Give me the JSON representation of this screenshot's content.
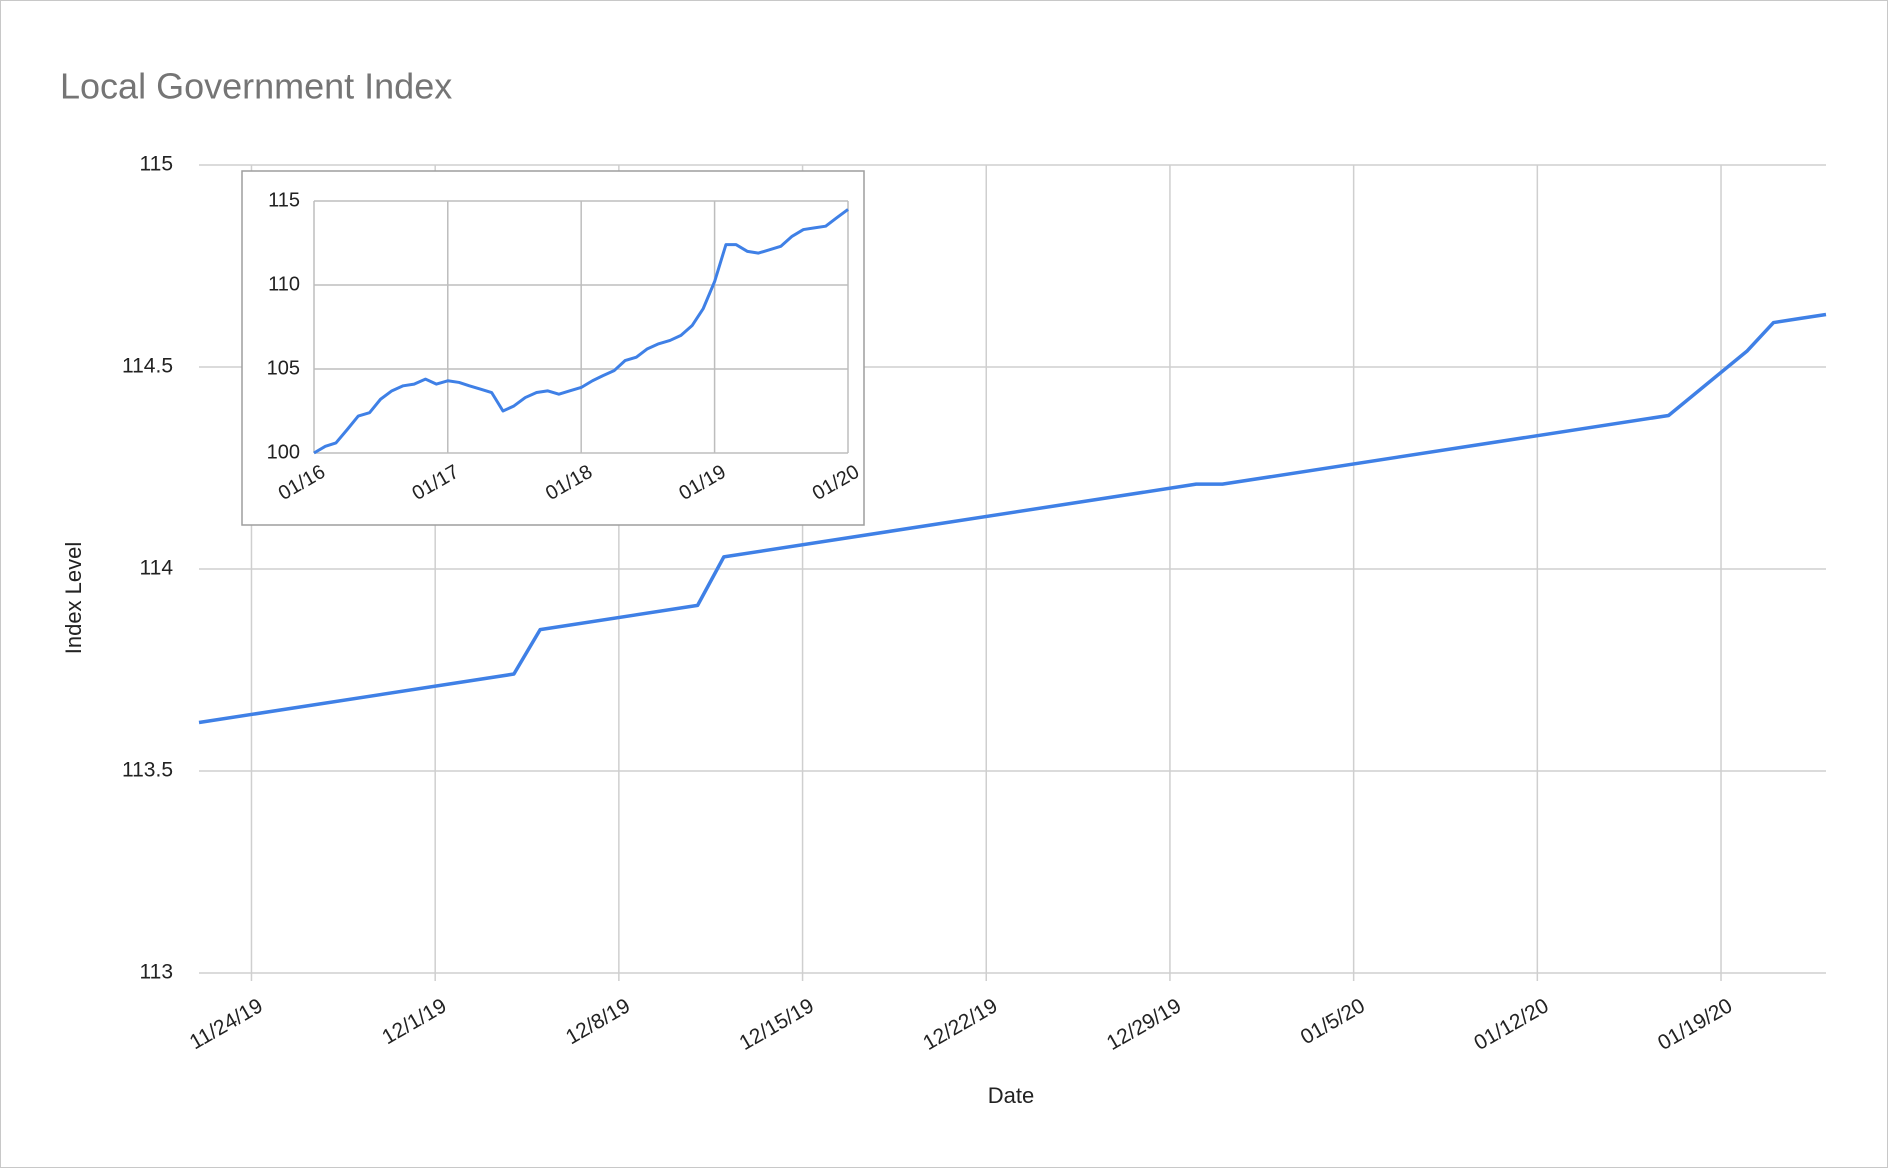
{
  "chart_data": [
    {
      "type": "line",
      "title": "Local Government Index",
      "x_label": "Date",
      "y_label": "Index Level",
      "x": [
        "2019-11-22",
        "2019-12-04",
        "2019-12-05",
        "2019-12-11",
        "2019-12-12",
        "2019-12-30",
        "2019-12-31",
        "2020-01-17",
        "2020-01-20",
        "2020-01-21",
        "2020-01-22",
        "2020-01-23"
      ],
      "values": [
        113.62,
        113.74,
        113.85,
        113.91,
        114.03,
        114.21,
        114.21,
        114.38,
        114.54,
        114.61,
        114.62,
        114.63
      ],
      "color": "#3f80e6",
      "xlim": [
        "2019-11-22",
        "2020-01-23"
      ],
      "xticks": [
        {
          "value": "2019-11-24",
          "label": "11/24/19"
        },
        {
          "value": "2019-12-01",
          "label": "12/1/19"
        },
        {
          "value": "2019-12-08",
          "label": "12/8/19"
        },
        {
          "value": "2019-12-15",
          "label": "12/15/19"
        },
        {
          "value": "2019-12-22",
          "label": "12/22/19"
        },
        {
          "value": "2019-12-29",
          "label": "12/29/19"
        },
        {
          "value": "2020-01-05",
          "label": "01/5/20"
        },
        {
          "value": "2020-01-12",
          "label": "01/12/20"
        },
        {
          "value": "2020-01-19",
          "label": "01/19/20"
        }
      ],
      "ylim": [
        113,
        115
      ],
      "yticks": [
        113,
        113.5,
        114,
        114.5,
        115
      ],
      "grid": true
    },
    {
      "type": "line",
      "x": [
        "2016-01",
        "2016-02",
        "2016-03",
        "2016-04",
        "2016-05",
        "2016-06",
        "2016-07",
        "2016-08",
        "2016-09",
        "2016-10",
        "2016-11",
        "2016-12",
        "2017-01",
        "2017-02",
        "2017-03",
        "2017-04",
        "2017-05",
        "2017-06",
        "2017-07",
        "2017-08",
        "2017-09",
        "2017-10",
        "2017-11",
        "2017-12",
        "2018-01",
        "2018-02",
        "2018-03",
        "2018-04",
        "2018-05",
        "2018-06",
        "2018-07",
        "2018-08",
        "2018-09",
        "2018-10",
        "2018-11",
        "2018-12",
        "2019-01",
        "2019-02",
        "2019-03",
        "2019-04",
        "2019-05",
        "2019-06",
        "2019-07",
        "2019-08",
        "2019-09",
        "2019-10",
        "2019-11",
        "2019-12",
        "2020-01"
      ],
      "values": [
        100.0,
        100.4,
        100.6,
        101.4,
        102.2,
        102.4,
        103.2,
        103.7,
        104.0,
        104.1,
        104.4,
        104.1,
        104.3,
        104.2,
        104.0,
        103.8,
        103.6,
        102.5,
        102.8,
        103.3,
        103.6,
        103.7,
        103.5,
        103.7,
        103.9,
        104.3,
        104.6,
        104.9,
        105.5,
        105.7,
        106.2,
        106.5,
        106.7,
        107.0,
        107.6,
        108.6,
        110.2,
        112.4,
        112.4,
        112.0,
        111.9,
        112.1,
        112.3,
        112.9,
        113.3,
        113.4,
        113.5,
        114.0,
        114.5
      ],
      "color": "#3f80e6",
      "xlim": [
        "2016-01",
        "2020-01"
      ],
      "xticks": [
        {
          "value": "2016-01",
          "label": "01/16"
        },
        {
          "value": "2017-01",
          "label": "01/17"
        },
        {
          "value": "2018-01",
          "label": "01/18"
        },
        {
          "value": "2019-01",
          "label": "01/19"
        },
        {
          "value": "2020-01",
          "label": "01/20"
        }
      ],
      "ylim": [
        100,
        115
      ],
      "yticks": [
        100,
        105,
        110,
        115
      ],
      "grid": true
    }
  ]
}
